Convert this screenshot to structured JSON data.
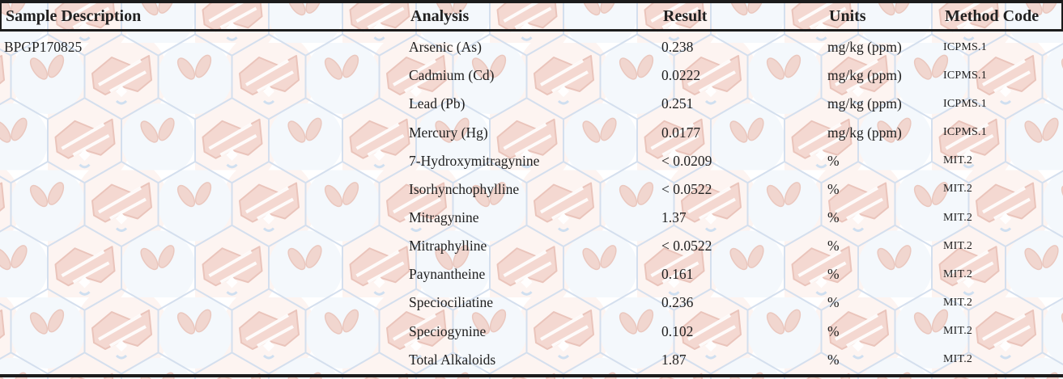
{
  "document": {
    "kind": "lab-analysis-results-table"
  },
  "table": {
    "columns": [
      "Sample Description",
      "Analysis",
      "Result",
      "Units",
      "Method Code"
    ],
    "sample_description": "BPGP170825",
    "rows": [
      {
        "analysis": "Arsenic (As)",
        "result": "0.238",
        "units": "mg/kg (ppm)",
        "method": "ICPMS.1"
      },
      {
        "analysis": "Cadmium (Cd)",
        "result": "0.0222",
        "units": "mg/kg (ppm)",
        "method": "ICPMS.1"
      },
      {
        "analysis": "Lead (Pb)",
        "result": "0.251",
        "units": "mg/kg (ppm)",
        "method": "ICPMS.1"
      },
      {
        "analysis": "Mercury (Hg)",
        "result": "0.0177",
        "units": "mg/kg (ppm)",
        "method": "ICPMS.1"
      },
      {
        "analysis": "7-Hydroxymitragynine",
        "result": "< 0.0209",
        "units": "%",
        "method": "MIT.2"
      },
      {
        "analysis": "Isorhynchophylline",
        "result": "< 0.0522",
        "units": "%",
        "method": "MIT.2"
      },
      {
        "analysis": "Mitragynine",
        "result": "1.37",
        "units": "%",
        "method": "MIT.2"
      },
      {
        "analysis": "Mitraphylline",
        "result": "< 0.0522",
        "units": "%",
        "method": "MIT.2"
      },
      {
        "analysis": "Paynantheine",
        "result": "0.161",
        "units": "%",
        "method": "MIT.2"
      },
      {
        "analysis": "Speciociliatine",
        "result": "0.236",
        "units": "%",
        "method": "MIT.2"
      },
      {
        "analysis": "Speciogynine",
        "result": "0.102",
        "units": "%",
        "method": "MIT.2"
      },
      {
        "analysis": "Total Alkaloids",
        "result": "1.87",
        "units": "%",
        "method": "MIT.2"
      }
    ]
  },
  "colors": {
    "rule": "#1c1c1c",
    "text": "#212121",
    "paper": "#ffffff",
    "wm-hex": "#d4dfee",
    "wm-blob": "#f2d4cb",
    "wm-blob-edge": "#e7bcb1",
    "wm-leaf": "#f1d3ca"
  }
}
